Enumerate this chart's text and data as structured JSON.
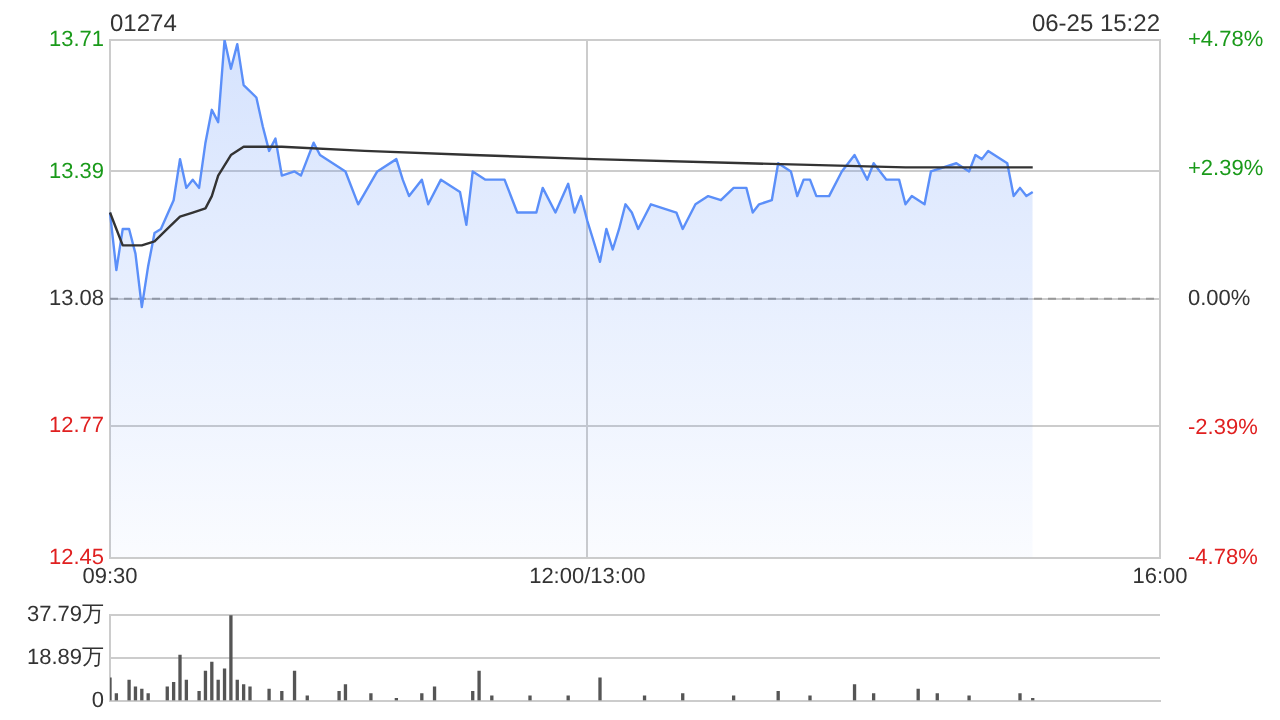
{
  "chart_data": [
    {
      "type": "line",
      "title": "01274",
      "annotations": [
        "06-25 15:22"
      ],
      "categories": [
        "09:30",
        null,
        null,
        null,
        null,
        null,
        null,
        null,
        null,
        null,
        null,
        null,
        null,
        null,
        null,
        null,
        null,
        null,
        null,
        null,
        null,
        null,
        null,
        null,
        null,
        null,
        null,
        null,
        null,
        null,
        null,
        null,
        null,
        null,
        null,
        null,
        null,
        null,
        null,
        null,
        null,
        null,
        null,
        null,
        null,
        null,
        null,
        null,
        null,
        null,
        null,
        null,
        null,
        null,
        null,
        null,
        null,
        null,
        null,
        null,
        null,
        null,
        null,
        null,
        null,
        null,
        null,
        null,
        null,
        null,
        null,
        null,
        null,
        null,
        null,
        "12:00/13:00",
        null,
        null,
        null,
        null,
        null,
        null,
        null,
        null,
        null,
        null,
        null,
        null,
        null,
        null,
        null,
        null,
        null,
        null,
        null,
        null,
        null,
        null,
        null,
        null,
        null,
        null,
        null,
        null,
        null,
        null,
        null,
        null,
        null,
        null,
        null,
        null,
        null,
        null,
        null,
        null,
        null,
        null,
        null,
        null,
        null,
        null,
        null,
        null,
        null,
        null,
        null,
        null,
        null,
        null,
        null,
        null,
        null,
        null,
        null,
        null,
        null,
        null,
        null,
        null,
        null,
        null,
        null,
        null,
        null,
        null,
        null,
        null,
        null,
        null,
        null,
        null,
        null,
        null,
        null,
        null,
        null,
        null,
        null,
        null,
        null,
        null,
        null,
        null,
        null,
        "16:00"
      ],
      "ylim": [
        12.45,
        13.71
      ],
      "yticks": [
        12.45,
        12.77,
        13.08,
        13.39,
        13.71
      ],
      "y2lim": [
        -4.78,
        4.78
      ],
      "y2ticks": [
        {
          "value": -4.78,
          "label": "-4.78%"
        },
        {
          "value": -2.39,
          "label": "-2.39%"
        },
        {
          "value": 0,
          "label": "0.00%"
        },
        {
          "value": 2.39,
          "label": "+2.39%"
        },
        {
          "value": 4.78,
          "label": "+4.78%"
        }
      ],
      "grid": true,
      "legend": false,
      "marker": "none",
      "ref_lines": [
        {
          "axis": "y",
          "value": 13.08,
          "color": "#999999",
          "line_style": "dashed"
        }
      ],
      "series": [
        {
          "type": "area",
          "color": "#5b8ff9",
          "values": [
            13.29,
            13.15,
            13.25,
            13.25,
            13.19,
            13.06,
            13.16,
            13.24,
            13.25,
            null,
            13.32,
            13.42,
            13.35,
            13.37,
            13.35,
            13.46,
            13.54,
            13.51,
            13.71,
            13.64,
            13.7,
            13.6,
            null,
            13.57,
            13.5,
            13.44,
            13.47,
            13.38,
            null,
            13.39,
            13.38,
            13.42,
            13.46,
            13.43,
            null,
            null,
            null,
            13.39,
            null,
            13.31,
            null,
            null,
            13.39,
            null,
            null,
            13.42,
            13.37,
            13.33,
            null,
            13.37,
            13.31,
            null,
            13.37,
            null,
            null,
            13.34,
            13.26,
            13.39,
            null,
            13.37,
            null,
            null,
            13.37,
            null,
            13.29,
            null,
            null,
            13.29,
            13.35,
            null,
            13.29,
            null,
            13.36,
            13.29,
            13.33,
            13.27,
            null,
            13.17,
            13.25,
            13.2,
            13.25,
            13.31,
            13.29,
            13.25,
            null,
            13.31,
            null,
            null,
            null,
            13.29,
            13.25,
            null,
            13.31,
            null,
            13.33,
            null,
            13.32,
            null,
            13.35,
            null,
            13.35,
            13.29,
            13.31,
            null,
            13.32,
            13.41,
            null,
            13.39,
            13.33,
            13.37,
            13.37,
            13.33,
            null,
            13.33,
            null,
            13.39,
            null,
            13.43,
            null,
            13.37,
            13.41,
            null,
            13.37,
            null,
            13.37,
            13.31,
            13.33,
            null,
            13.31,
            13.39,
            null,
            null,
            null,
            13.41,
            null,
            13.39,
            13.43,
            13.42,
            13.44,
            null,
            null,
            13.41,
            13.33,
            13.35,
            13.33,
            13.34,
            null,
            null,
            null,
            null,
            null,
            null,
            null,
            null,
            null,
            null,
            null,
            null,
            null,
            null,
            null,
            null,
            null,
            null,
            null,
            null
          ]
        },
        {
          "type": "line",
          "color": "#333333",
          "values": [
            13.29,
            13.25,
            13.21,
            null,
            null,
            13.21,
            null,
            13.22,
            null,
            13.25,
            null,
            13.28,
            null,
            13.29,
            null,
            13.3,
            13.33,
            13.38,
            null,
            13.43,
            null,
            13.45,
            null,
            null,
            null,
            null,
            null,
            13.45,
            null,
            null,
            null,
            null,
            null,
            null,
            null,
            null,
            null,
            null,
            null,
            null,
            13.44,
            null,
            null,
            null,
            null,
            null,
            null,
            null,
            null,
            null,
            null,
            null,
            null,
            null,
            null,
            null,
            null,
            13.43,
            null,
            null,
            null,
            null,
            null,
            null,
            null,
            null,
            null,
            null,
            null,
            null,
            null,
            null,
            null,
            null,
            null,
            null,
            13.42,
            null,
            null,
            null,
            null,
            null,
            null,
            null,
            null,
            null,
            null,
            null,
            null,
            null,
            null,
            null,
            null,
            null,
            null,
            null,
            null,
            null,
            null,
            null,
            13.41,
            null,
            null,
            null,
            null,
            null,
            null,
            null,
            null,
            null,
            null,
            null,
            null,
            null,
            null,
            null,
            null,
            null,
            null,
            null,
            null,
            null,
            null,
            null,
            null,
            13.4,
            null,
            null,
            null,
            null,
            null,
            null,
            null,
            null,
            null,
            null,
            null,
            null,
            null,
            null,
            null,
            null,
            null,
            null,
            null,
            13.4,
            null,
            null,
            null,
            null,
            null,
            null,
            null,
            null,
            null,
            null,
            null,
            null,
            null,
            null,
            null,
            null,
            null,
            null,
            null,
            null
          ]
        }
      ]
    },
    {
      "type": "bar",
      "tick_labels": "y",
      "grid": "y",
      "legend": false,
      "categories": [
        null,
        null,
        null,
        null,
        null,
        null,
        null,
        null,
        null,
        null,
        null,
        null,
        null,
        null,
        null,
        null,
        null,
        null,
        null,
        null,
        null,
        null,
        null,
        null,
        null,
        null,
        null,
        null,
        null,
        null,
        null,
        null,
        null,
        null,
        null,
        null,
        null,
        null,
        null,
        null,
        null,
        null,
        null,
        null,
        null,
        null,
        null,
        null,
        null,
        null,
        null,
        null,
        null,
        null,
        null,
        null,
        null,
        null,
        null,
        null,
        null,
        null,
        null,
        null,
        null,
        null,
        null,
        null,
        null,
        null,
        null,
        null,
        null,
        null,
        null,
        null,
        null,
        null,
        null,
        null,
        null,
        null,
        null,
        null,
        null,
        null,
        null,
        null,
        null,
        null,
        null,
        null,
        null,
        null,
        null,
        null,
        null,
        null,
        null,
        null,
        null,
        null,
        null,
        null,
        null,
        null,
        null,
        null,
        null,
        null,
        null,
        null,
        null,
        null,
        null,
        null,
        null,
        null,
        null,
        null,
        null,
        null,
        null,
        null,
        null,
        null,
        null,
        null,
        null,
        null,
        null,
        null,
        null,
        null,
        null,
        null,
        null,
        null,
        null,
        null,
        null,
        null,
        null,
        null,
        null,
        null,
        null,
        null,
        null,
        null,
        null,
        null,
        null,
        null,
        null,
        null,
        null,
        null,
        null,
        null,
        null,
        null,
        null,
        null,
        null,
        null
      ],
      "ylim": [
        0,
        37.79
      ],
      "yticks": [
        0,
        {
          "value": 18.89,
          "label": "18.89万"
        },
        {
          "value": 37.79,
          "label": "37.79万"
        }
      ],
      "series": [
        {
          "color": "#555555",
          "values": [
            10,
            3,
            null,
            9,
            6,
            5,
            3,
            null,
            null,
            6,
            8,
            20,
            9,
            null,
            4,
            13,
            17,
            9,
            14,
            37.79,
            9,
            7,
            6,
            null,
            null,
            5,
            null,
            4,
            null,
            13,
            null,
            2,
            null,
            null,
            null,
            null,
            4,
            7,
            null,
            null,
            null,
            3,
            null,
            null,
            null,
            1,
            null,
            null,
            null,
            3,
            null,
            6,
            null,
            null,
            null,
            null,
            null,
            4,
            13,
            null,
            2,
            null,
            null,
            null,
            null,
            null,
            2,
            null,
            null,
            null,
            null,
            null,
            2,
            null,
            null,
            null,
            null,
            10,
            null,
            null,
            null,
            null,
            null,
            null,
            2,
            null,
            null,
            null,
            null,
            null,
            3,
            null,
            null,
            null,
            null,
            null,
            null,
            null,
            2,
            null,
            null,
            null,
            null,
            null,
            null,
            4,
            null,
            null,
            null,
            null,
            2,
            null,
            null,
            null,
            null,
            null,
            null,
            7,
            null,
            null,
            3,
            null,
            null,
            null,
            null,
            null,
            null,
            5,
            null,
            null,
            3,
            null,
            null,
            null,
            null,
            2,
            null,
            null,
            null,
            null,
            null,
            null,
            null,
            3,
            null,
            1,
            null,
            null,
            null,
            null,
            null,
            null,
            null,
            null,
            null,
            null,
            null,
            null,
            null,
            null,
            null,
            null,
            null,
            null,
            null,
            null
          ]
        }
      ]
    }
  ]
}
